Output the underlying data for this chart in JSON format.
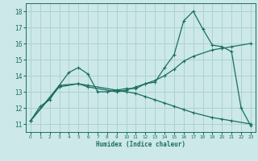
{
  "xlabel": "Humidex (Indice chaleur)",
  "ylabel": "",
  "xlim": [
    -0.5,
    23.5
  ],
  "ylim": [
    10.5,
    18.5
  ],
  "xticks": [
    0,
    1,
    2,
    3,
    4,
    5,
    6,
    7,
    8,
    9,
    10,
    11,
    12,
    13,
    14,
    15,
    16,
    17,
    18,
    19,
    20,
    21,
    22,
    23
  ],
  "yticks": [
    11,
    12,
    13,
    14,
    15,
    16,
    17,
    18
  ],
  "bg_color": "#cce8e8",
  "line_color": "#1a6e60",
  "grid_color": "#aacece",
  "line1_x": [
    0,
    1,
    2,
    3,
    4,
    5,
    6,
    7,
    8,
    9,
    10,
    11,
    12,
    13,
    14,
    15,
    16,
    17,
    18,
    19,
    20,
    21,
    22,
    23
  ],
  "line1_y": [
    11.2,
    12.1,
    12.5,
    13.4,
    14.2,
    14.5,
    14.1,
    13.0,
    13.0,
    13.1,
    13.2,
    13.2,
    13.5,
    13.6,
    14.5,
    15.3,
    17.4,
    18.0,
    16.9,
    15.9,
    15.8,
    15.5,
    12.0,
    10.9
  ],
  "line2_x": [
    0,
    3,
    5,
    6,
    9,
    10,
    11,
    12,
    13,
    14,
    15,
    16,
    17,
    19,
    20,
    21,
    23
  ],
  "line2_y": [
    11.2,
    13.4,
    13.5,
    13.3,
    13.0,
    13.1,
    13.3,
    13.5,
    13.7,
    14.0,
    14.4,
    14.9,
    15.2,
    15.6,
    15.7,
    15.8,
    16.0
  ],
  "line3_x": [
    0,
    3,
    5,
    6,
    9,
    10,
    11,
    12,
    13,
    14,
    15,
    16,
    17,
    19,
    20,
    21,
    23
  ],
  "line3_y": [
    11.2,
    13.3,
    13.5,
    13.4,
    13.1,
    13.0,
    12.9,
    12.7,
    12.5,
    12.3,
    12.1,
    11.9,
    11.7,
    11.4,
    11.3,
    11.2,
    11.0
  ]
}
